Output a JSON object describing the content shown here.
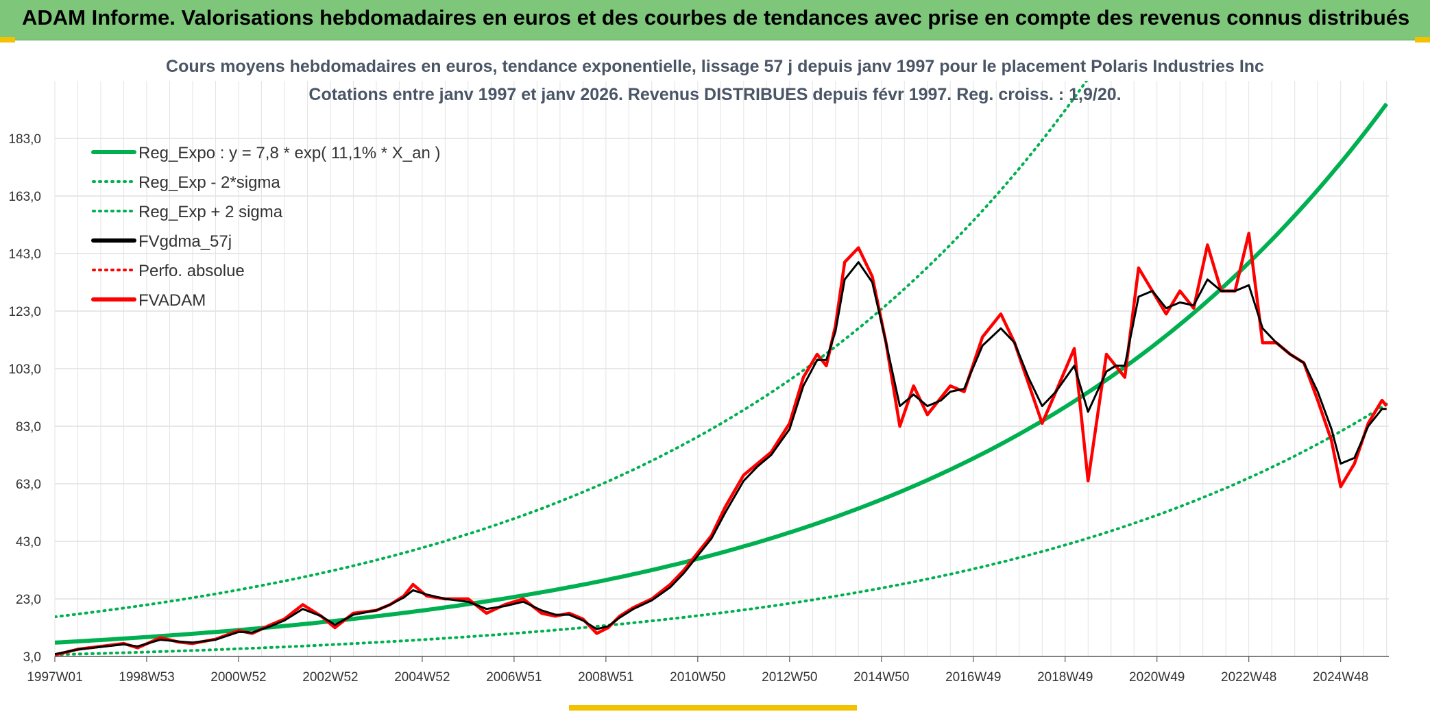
{
  "banner": {
    "title": "ADAM Informe. Valorisations hebdomadaires en euros et des courbes de tendances avec prise en compte des revenus connus distribués",
    "background": "#7dc67a"
  },
  "chart_data": {
    "type": "line",
    "title": "Cours moyens hebdomadaires en euros, tendance exponentielle, lissage 57 j depuis janv 1997 pour le placement Polaris Industries Inc",
    "subtitle": "Cotations entre janv 1997 et janv 2026. Revenus DISTRIBUES depuis févr 1997. Reg. croiss. : 1,9/20.",
    "xlabel": "",
    "ylabel": "",
    "x_range": [
      1997.0,
      2026.05
    ],
    "ylim": [
      3.0,
      203.0
    ],
    "y_ticks": [
      3.0,
      23.0,
      43.0,
      63.0,
      83.0,
      103.0,
      123.0,
      143.0,
      163.0,
      183.0
    ],
    "y_tick_labels": [
      "3,0",
      "23,0",
      "43,0",
      "63,0",
      "83,0",
      "103,0",
      "123,0",
      "143,0",
      "163,0",
      "183,0"
    ],
    "x_ticks": [
      1997.0,
      1999.0,
      2001.0,
      2003.0,
      2005.0,
      2007.0,
      2009.0,
      2011.0,
      2013.0,
      2015.0,
      2017.0,
      2019.0,
      2021.0,
      2023.0,
      2025.0
    ],
    "x_tick_labels": [
      "1997W01",
      "1998W53",
      "2000W52",
      "2002W52",
      "2004W52",
      "2006W51",
      "2008W51",
      "2010W50",
      "2012W50",
      "2014W50",
      "2016W49",
      "2018W49",
      "2020W49",
      "2022W48",
      "2024W48"
    ],
    "grid": true,
    "legend_position": "top-left",
    "colors": {
      "trend": "#00b050",
      "smooth": "#000000",
      "adam": "#ff0000",
      "perf": "#ff0000"
    },
    "regression": {
      "base": 7.8,
      "rate": 0.111,
      "band_factor": 2.15
    },
    "legend": [
      {
        "label": "Reg_Expo : y = 7,8 * exp( 11,1% *  X_an )",
        "color": "#00b050",
        "style": "solid"
      },
      {
        "label": "Reg_Exp - 2*sigma",
        "color": "#00b050",
        "style": "dotted"
      },
      {
        "label": "Reg_Exp + 2 sigma",
        "color": "#00b050",
        "style": "dotted"
      },
      {
        "label": "FVgdma_57j",
        "color": "#000000",
        "style": "solid"
      },
      {
        "label": "Perfo. absolue",
        "color": "#ff0000",
        "style": "dotted"
      },
      {
        "label": "FVADAM",
        "color": "#ff0000",
        "style": "solid"
      }
    ],
    "series": [
      {
        "name": "FVADAM",
        "x": [
          1997.0,
          1997.5,
          1998.0,
          1998.5,
          1998.8,
          1999.3,
          1999.7,
          2000.0,
          2000.5,
          2001.0,
          2001.3,
          2001.7,
          2002.0,
          2002.4,
          2002.8,
          2003.1,
          2003.5,
          2004.0,
          2004.3,
          2004.6,
          2004.8,
          2005.1,
          2005.5,
          2006.0,
          2006.4,
          2006.8,
          2007.2,
          2007.6,
          2007.9,
          2008.2,
          2008.5,
          2008.8,
          2009.05,
          2009.3,
          2009.6,
          2010.0,
          2010.4,
          2010.7,
          2011.0,
          2011.3,
          2011.6,
          2012.0,
          2012.3,
          2012.6,
          2013.0,
          2013.3,
          2013.6,
          2013.8,
          2014.0,
          2014.2,
          2014.5,
          2014.8,
          2015.1,
          2015.4,
          2015.7,
          2016.0,
          2016.3,
          2016.5,
          2016.8,
          2017.2,
          2017.6,
          2017.9,
          2018.2,
          2018.5,
          2018.8,
          2019.2,
          2019.5,
          2019.9,
          2020.1,
          2020.3,
          2020.6,
          2020.9,
          2021.2,
          2021.5,
          2021.8,
          2022.1,
          2022.4,
          2022.7,
          2023.0,
          2023.3,
          2023.6,
          2023.9,
          2024.2,
          2024.5,
          2024.8,
          2025.0,
          2025.3,
          2025.6,
          2025.9,
          2026.0
        ],
        "values": [
          3.5,
          5.5,
          6.5,
          7.5,
          6.0,
          9.5,
          8.0,
          7.5,
          9.0,
          12.0,
          11.0,
          14.0,
          16.0,
          21.0,
          17.0,
          13.0,
          18.0,
          19.0,
          21.0,
          24.0,
          28.0,
          24.0,
          23.0,
          23.0,
          18.0,
          21.0,
          23.0,
          18.0,
          17.0,
          18.0,
          16.0,
          11.0,
          13.0,
          17.0,
          20.0,
          23.0,
          28.0,
          33.0,
          39.0,
          45.0,
          55.0,
          66.0,
          70.0,
          74.0,
          84.0,
          100.0,
          108.0,
          104.0,
          118.0,
          140.0,
          145.0,
          135.0,
          112.0,
          83.0,
          97.0,
          87.0,
          93.0,
          97.0,
          95.0,
          114.0,
          122.0,
          112.0,
          98.0,
          84.0,
          95.0,
          110.0,
          64.0,
          108.0,
          104.0,
          100.0,
          138.0,
          130.0,
          122.0,
          130.0,
          124.0,
          146.0,
          130.0,
          130.0,
          150.0,
          112.0,
          112.0,
          108.0,
          105.0,
          92.0,
          78.0,
          62.0,
          70.0,
          84.0,
          92.0,
          90.0
        ],
        "color": "#ff0000"
      },
      {
        "name": "FVgdma_57j",
        "x": [
          1997.0,
          1997.5,
          1998.0,
          1998.5,
          1998.8,
          1999.3,
          1999.7,
          2000.0,
          2000.5,
          2001.0,
          2001.3,
          2001.7,
          2002.0,
          2002.4,
          2002.8,
          2003.1,
          2003.5,
          2004.0,
          2004.3,
          2004.6,
          2004.8,
          2005.1,
          2005.5,
          2006.0,
          2006.4,
          2006.8,
          2007.2,
          2007.6,
          2007.9,
          2008.2,
          2008.5,
          2008.8,
          2009.05,
          2009.3,
          2009.6,
          2010.0,
          2010.4,
          2010.7,
          2011.0,
          2011.3,
          2011.6,
          2012.0,
          2012.3,
          2012.6,
          2013.0,
          2013.3,
          2013.6,
          2013.8,
          2014.0,
          2014.2,
          2014.5,
          2014.8,
          2015.1,
          2015.4,
          2015.7,
          2016.0,
          2016.3,
          2016.5,
          2016.8,
          2017.2,
          2017.6,
          2017.9,
          2018.2,
          2018.5,
          2018.8,
          2019.2,
          2019.5,
          2019.9,
          2020.1,
          2020.3,
          2020.6,
          2020.9,
          2021.2,
          2021.5,
          2021.8,
          2022.1,
          2022.4,
          2022.7,
          2023.0,
          2023.3,
          2023.6,
          2023.9,
          2024.2,
          2024.5,
          2024.8,
          2025.0,
          2025.3,
          2025.6,
          2025.9,
          2026.0
        ],
        "values": [
          3.8,
          5.4,
          6.3,
          7.2,
          6.5,
          8.8,
          8.2,
          7.8,
          8.8,
          11.5,
          11.3,
          13.5,
          15.5,
          19.5,
          17.0,
          14.0,
          17.5,
          19.0,
          21.0,
          23.5,
          26.0,
          24.5,
          23.0,
          22.0,
          19.5,
          20.5,
          22.0,
          19.0,
          17.5,
          17.5,
          15.5,
          12.5,
          13.5,
          16.5,
          19.5,
          22.5,
          27.0,
          32.0,
          38.0,
          44.0,
          53.0,
          64.0,
          69.0,
          73.0,
          82.0,
          97.0,
          106.0,
          106.0,
          116.0,
          134.0,
          140.0,
          133.0,
          112.0,
          90.0,
          94.0,
          90.0,
          92.0,
          95.0,
          96.0,
          111.0,
          117.0,
          112.0,
          100.0,
          90.0,
          95.0,
          104.0,
          88.0,
          102.0,
          104.0,
          104.0,
          128.0,
          130.0,
          124.0,
          126.0,
          125.0,
          134.0,
          130.0,
          130.0,
          132.0,
          117.0,
          112.0,
          108.0,
          105.0,
          95.0,
          82.0,
          70.0,
          72.0,
          83.0,
          89.0,
          89.0
        ],
        "color": "#000000"
      }
    ]
  }
}
